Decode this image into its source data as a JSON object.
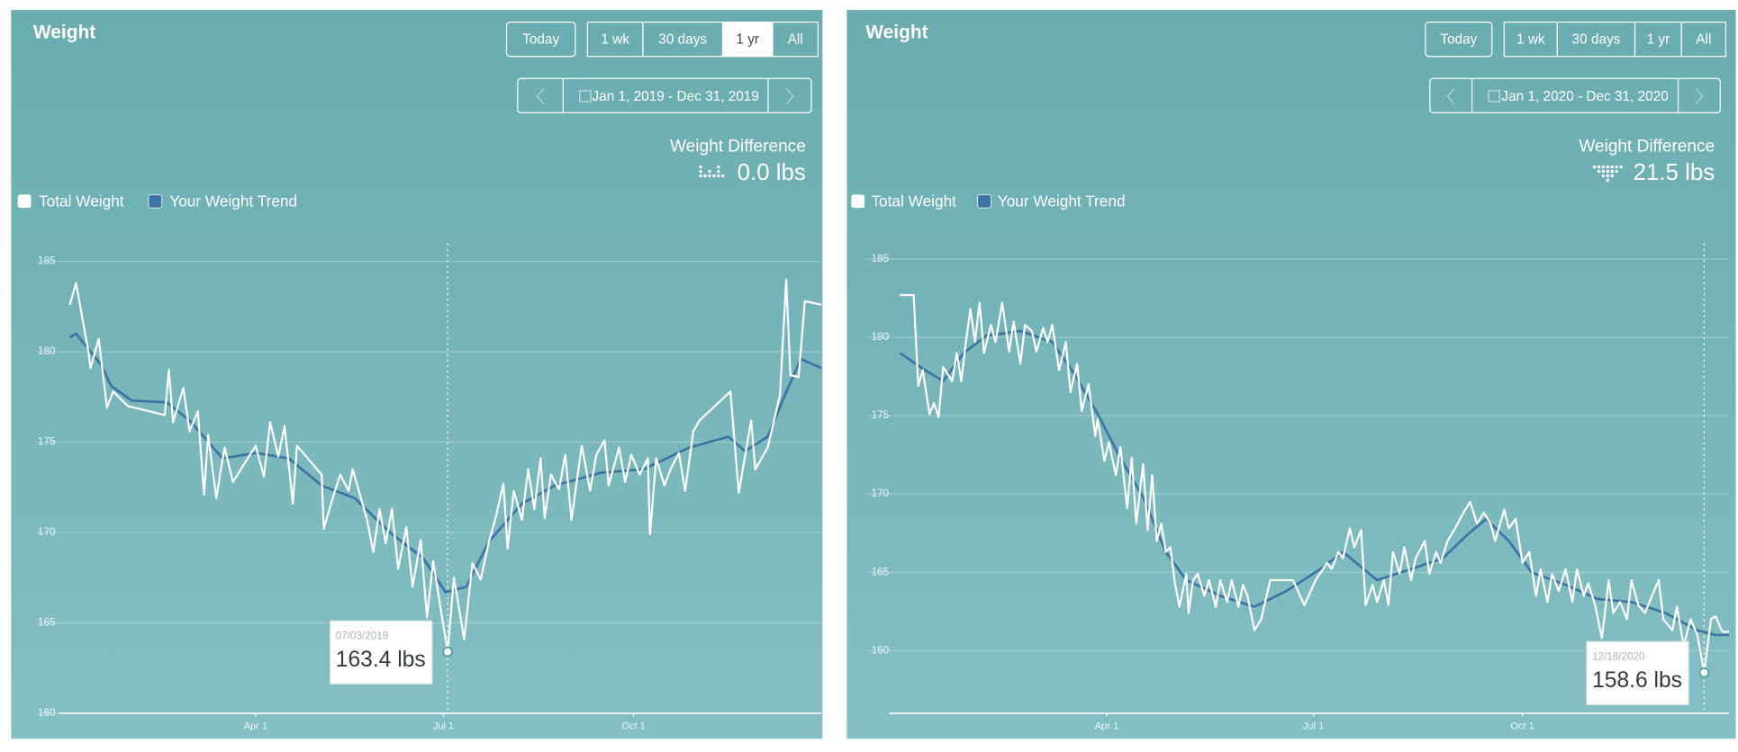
{
  "chart_data": [
    {
      "type": "line",
      "title": "Weight",
      "buttons": [
        "Today",
        "1 wk",
        "30 days",
        "1 yr",
        "All"
      ],
      "active_button": 3,
      "date_range": "Jan 1, 2019 - Dec 31, 2019",
      "difference_label": "Weight Difference",
      "difference_value": "0.0 lbs",
      "series": [
        {
          "name": "Total Weight",
          "color": "#ffffff",
          "x": [
            1,
            4,
            10,
            11,
            15,
            19,
            22,
            29,
            47,
            49,
            51,
            56,
            59,
            63,
            66,
            68,
            72,
            74,
            76,
            80,
            91,
            95,
            98,
            102,
            105,
            109,
            111,
            123,
            124,
            128,
            132,
            136,
            138,
            145,
            148,
            151,
            154,
            157,
            160,
            164,
            167,
            171,
            174,
            177,
            181,
            184,
            187,
            192,
            196,
            200,
            204,
            207,
            211,
            213,
            216,
            220,
            223,
            226,
            229,
            231,
            234,
            238,
            241,
            244,
            247,
            249,
            253,
            256,
            260,
            262,
            267,
            270,
            273,
            277,
            281,
            282,
            285,
            289,
            292,
            296,
            299,
            303,
            306,
            321,
            325,
            331,
            333,
            339,
            345,
            348,
            350,
            354,
            357,
            365
          ],
          "values": [
            182.6,
            183.8,
            180.0,
            179.1,
            180.7,
            176.9,
            177.8,
            177.0,
            176.5,
            179.0,
            176.1,
            178.0,
            175.6,
            176.7,
            172.1,
            175.4,
            171.9,
            173.4,
            174.7,
            172.8,
            174.8,
            173.1,
            176.1,
            174.2,
            175.9,
            171.6,
            174.8,
            173.2,
            170.2,
            171.8,
            173.2,
            172.3,
            173.5,
            170.7,
            168.9,
            171.3,
            169.4,
            171.3,
            168.0,
            170.3,
            167.0,
            169.6,
            165.3,
            168.4,
            165.5,
            163.4,
            167.5,
            164.1,
            168.3,
            167.4,
            169.5,
            170.7,
            172.7,
            169.1,
            172.3,
            170.7,
            173.5,
            171.3,
            174.1,
            170.8,
            173.2,
            172.4,
            174.3,
            170.7,
            173.2,
            174.8,
            172.3,
            174.3,
            175.1,
            172.6,
            174.7,
            172.8,
            174.3,
            173.2,
            174.1,
            169.9,
            174.1,
            172.6,
            173.5,
            174.4,
            172.3,
            175.6,
            176.2,
            177.8,
            172.2,
            176.2,
            173.5,
            174.7,
            177.6,
            184.0,
            178.7,
            178.6,
            182.8,
            182.6
          ]
        },
        {
          "name": "Your Weight Trend",
          "color": "#3d74a4",
          "x": [
            1,
            4,
            16,
            21,
            31,
            48,
            59,
            75,
            91,
            107,
            123,
            139,
            156,
            172,
            183,
            193,
            204,
            220,
            236,
            258,
            279,
            301,
            320,
            328,
            339,
            347,
            355,
            365
          ],
          "values": [
            180.8,
            181.0,
            179.3,
            178.1,
            177.3,
            177.2,
            176.2,
            174.1,
            174.4,
            174.1,
            172.6,
            171.9,
            170.0,
            168.6,
            166.7,
            167.0,
            169.5,
            171.6,
            172.6,
            173.3,
            173.5,
            174.7,
            175.3,
            174.5,
            175.3,
            177.5,
            179.6,
            179.1
          ]
        }
      ],
      "xlim": [
        1,
        365
      ],
      "xticks": [
        {
          "value": 91,
          "label": "Apr 1"
        },
        {
          "value": 182,
          "label": "Jul 1"
        },
        {
          "value": 274,
          "label": "Oct 1"
        }
      ],
      "ylim": [
        160,
        186
      ],
      "yticks": [
        160,
        165,
        170,
        175,
        180,
        185
      ],
      "grid": true,
      "tooltip": {
        "date": "07/03/2019",
        "x": 184,
        "value": 163.4,
        "label": "163.4 lbs"
      }
    },
    {
      "type": "line",
      "title": "Weight",
      "buttons": [
        "Today",
        "1 wk",
        "30 days",
        "1 yr",
        "All"
      ],
      "date_range": "Jan 1, 2020 - Dec 31, 2020",
      "difference_label": "Weight Difference",
      "difference_value": "21.5 lbs",
      "series": [
        {
          "name": "Total Weight",
          "color": "#ffffff",
          "x": [
            1,
            7,
            9,
            11,
            14,
            16,
            18,
            20,
            24,
            26,
            28,
            30,
            32,
            34,
            36,
            38,
            41,
            43,
            46,
            49,
            51,
            54,
            56,
            59,
            61,
            64,
            66,
            68,
            71,
            74,
            76,
            79,
            81,
            84,
            87,
            88,
            91,
            93,
            96,
            98,
            101,
            103,
            105,
            108,
            110,
            112,
            114,
            116,
            118,
            120,
            122,
            124,
            127,
            128,
            130,
            132,
            135,
            137,
            140,
            142,
            145,
            147,
            150,
            152,
            154,
            157,
            160,
            164,
            174,
            179,
            184,
            189,
            191,
            194,
            196,
            199,
            201,
            204,
            206,
            209,
            211,
            214,
            216,
            218,
            221,
            223,
            226,
            228,
            232,
            234,
            237,
            239,
            242,
            245,
            249,
            252,
            255,
            258,
            261,
            263,
            267,
            269,
            272,
            275,
            278,
            281,
            283,
            286,
            288,
            291,
            294,
            297,
            299,
            302,
            304,
            307,
            310,
            313,
            315,
            318,
            321,
            323,
            326,
            329,
            332,
            335,
            337,
            341,
            343,
            346,
            349,
            352,
            355,
            358,
            360,
            363,
            366
          ],
          "values": [
            182.7,
            182.7,
            176.9,
            177.9,
            175.1,
            175.8,
            174.9,
            178.1,
            177.2,
            179.0,
            177.2,
            179.7,
            181.8,
            179.7,
            182.2,
            179.0,
            180.8,
            179.7,
            182.2,
            179.1,
            181.0,
            178.3,
            180.8,
            180.4,
            179.1,
            180.6,
            179.7,
            180.8,
            177.9,
            179.7,
            176.5,
            178.3,
            175.3,
            177.0,
            173.7,
            174.8,
            172.1,
            173.3,
            171.2,
            173.0,
            169.1,
            172.3,
            168.1,
            171.9,
            167.7,
            171.2,
            167.0,
            168.1,
            166.3,
            166.6,
            164.3,
            162.8,
            164.9,
            162.4,
            164.5,
            164.9,
            163.5,
            164.5,
            162.8,
            164.5,
            163.1,
            164.5,
            162.8,
            164.2,
            163.5,
            161.3,
            162.0,
            164.5,
            164.5,
            162.9,
            164.5,
            165.6,
            165.2,
            166.3,
            165.9,
            167.8,
            166.6,
            167.7,
            162.9,
            164.2,
            163.1,
            164.5,
            162.9,
            166.3,
            164.9,
            166.6,
            164.5,
            165.9,
            167.0,
            164.9,
            166.3,
            165.6,
            167.0,
            167.7,
            168.8,
            169.5,
            168.1,
            168.8,
            168.1,
            167.0,
            169.0,
            167.8,
            168.4,
            165.6,
            166.3,
            163.5,
            165.2,
            163.1,
            164.9,
            163.8,
            165.2,
            163.1,
            165.2,
            163.5,
            164.3,
            162.9,
            160.8,
            164.5,
            162.4,
            163.1,
            162.0,
            164.5,
            162.9,
            162.4,
            163.5,
            164.5,
            162.0,
            161.3,
            162.8,
            160.3,
            162.0,
            161.0,
            158.6,
            162.0,
            162.2,
            161.2,
            161.2
          ]
        },
        {
          "name": "Your Weight Trend",
          "color": "#3d74a4",
          "x": [
            1,
            12,
            20,
            29,
            39,
            54,
            68,
            78,
            88,
            98,
            108,
            118,
            127,
            142,
            157,
            171,
            186,
            196,
            211,
            226,
            240,
            250,
            259,
            269,
            279,
            294,
            308,
            323,
            338,
            352,
            360,
            366
          ],
          "values": [
            179.0,
            177.9,
            177.2,
            179.0,
            180.1,
            180.4,
            179.7,
            177.6,
            175.1,
            172.3,
            169.8,
            166.3,
            164.5,
            163.5,
            162.8,
            163.8,
            165.2,
            166.3,
            164.5,
            165.2,
            165.9,
            167.3,
            168.4,
            167.0,
            165.0,
            164.2,
            163.3,
            163.1,
            162.4,
            161.3,
            161.0,
            161.0
          ]
        }
      ],
      "xlim": [
        1,
        366
      ],
      "xticks": [
        {
          "value": 92,
          "label": "Apr 1"
        },
        {
          "value": 183,
          "label": "Jul 1"
        },
        {
          "value": 275,
          "label": "Oct 1"
        }
      ],
      "ylim": [
        156,
        186
      ],
      "yticks": [
        160,
        165,
        170,
        175,
        180,
        185
      ],
      "grid": true,
      "tooltip": {
        "date": "12/18/2020",
        "x": 355,
        "value": 158.6,
        "label": "158.6 lbs"
      }
    }
  ]
}
